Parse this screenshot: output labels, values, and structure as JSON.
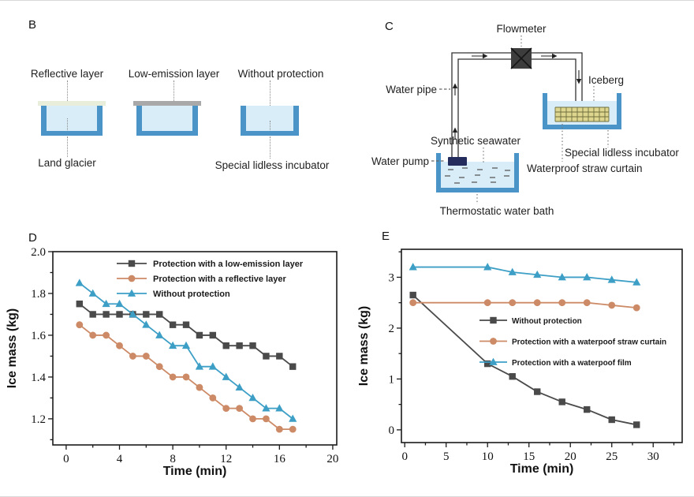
{
  "figure": {
    "panels": {
      "B": {
        "label": "B",
        "setup_labels": [
          "Reflective layer",
          "Low-emission layer",
          "Without protection"
        ],
        "annotations": [
          "Land glacier",
          "Special lidless incubator"
        ]
      },
      "C": {
        "label": "C",
        "annotations": {
          "flowmeter": "Flowmeter",
          "water_pipe": "Water pipe",
          "iceberg": "Iceberg",
          "water_pump": "Water pump",
          "synthetic_seawater": "Synthetic seawater",
          "special_lidless_incubator": "Special lidless incubator",
          "waterproof_straw_curtain": "Waterproof straw curtain",
          "thermostatic_water_bath": "Thermostatic water bath"
        }
      },
      "D": {
        "label": "D"
      },
      "E": {
        "label": "E"
      }
    },
    "colors": {
      "tub_blue": "#4a94c8",
      "water_light_blue": "#d9edf9",
      "reflective_layer": "#e9eedb",
      "low_emission_layer": "#a9a9a9",
      "straw_curtain_fill": "#ded68f",
      "pump_navy": "#232c5c",
      "flowmeter_gray": "#3d3d3d",
      "series_gray": "#4a4a4a",
      "series_orange": "#cd8a66",
      "series_blue": "#3d9fc6"
    }
  },
  "chart_data": [
    {
      "id": "D",
      "type": "line",
      "xlabel": "Time (min)",
      "ylabel": "Ice mass (kg)",
      "xlim": [
        -1,
        20.3
      ],
      "ylim": [
        1.075,
        2.0
      ],
      "xticks": [
        0,
        4,
        8,
        12,
        16,
        20
      ],
      "xtick_labels": [
        "0",
        "4",
        "8",
        "12",
        "16",
        "20"
      ],
      "yticks": [
        1.2,
        1.4,
        1.6,
        1.8,
        2.0
      ],
      "ytick_labels": [
        "1.2",
        "1.4",
        "1.6",
        "1.8",
        "2.0"
      ],
      "x_minor_step": 2,
      "y_minor_step": 0.1,
      "grid": false,
      "legend_position": "inside-top",
      "x": [
        1,
        2,
        3,
        4,
        5,
        6,
        7,
        8,
        9,
        10,
        11,
        12,
        13,
        14,
        15,
        16,
        17
      ],
      "series": [
        {
          "name": "Protection with a low-emission layer",
          "color": "#4a4a4a",
          "marker": "square",
          "values": [
            1.75,
            1.7,
            1.7,
            1.7,
            1.7,
            1.7,
            1.7,
            1.65,
            1.65,
            1.6,
            1.6,
            1.55,
            1.55,
            1.55,
            1.5,
            1.5,
            1.45
          ]
        },
        {
          "name": "Protection with a reflective layer",
          "color": "#cd8a66",
          "marker": "circle",
          "values": [
            1.65,
            1.6,
            1.6,
            1.55,
            1.5,
            1.5,
            1.45,
            1.4,
            1.4,
            1.35,
            1.3,
            1.25,
            1.25,
            1.2,
            1.2,
            1.15,
            1.15
          ]
        },
        {
          "name": "Without protection",
          "color": "#3d9fc6",
          "marker": "triangle",
          "values": [
            1.85,
            1.8,
            1.75,
            1.75,
            1.7,
            1.65,
            1.6,
            1.55,
            1.55,
            1.45,
            1.45,
            1.4,
            1.35,
            1.3,
            1.25,
            1.25,
            1.2
          ]
        }
      ]
    },
    {
      "id": "E",
      "type": "line",
      "xlabel": "Time (min)",
      "ylabel": "Ice mass (kg)",
      "xlim": [
        -0.4,
        33.5
      ],
      "ylim": [
        -0.25,
        3.55
      ],
      "xticks": [
        0,
        5,
        10,
        15,
        20,
        25,
        30
      ],
      "xtick_labels": [
        "0",
        "5",
        "10",
        "15",
        "20",
        "25",
        "30"
      ],
      "yticks": [
        0,
        1,
        2,
        3
      ],
      "ytick_labels": [
        "0",
        "1",
        "2",
        "3"
      ],
      "x_minor_step": 2.5,
      "y_minor_step": 0.5,
      "grid": false,
      "legend_position": "inside-middle",
      "x": [
        1,
        10,
        13,
        16,
        19,
        22,
        25,
        28
      ],
      "series": [
        {
          "name": "Without protection",
          "color": "#4a4a4a",
          "marker": "square",
          "values": [
            2.65,
            1.3,
            1.05,
            0.75,
            0.55,
            0.4,
            0.2,
            0.1
          ]
        },
        {
          "name": "Protection with a waterpoof straw curtain",
          "color": "#cd8a66",
          "marker": "circle",
          "values": [
            2.5,
            2.5,
            2.5,
            2.5,
            2.5,
            2.5,
            2.45,
            2.4
          ]
        },
        {
          "name": "Protection with a waterpoof film",
          "color": "#3d9fc6",
          "marker": "triangle",
          "values": [
            3.2,
            3.2,
            3.1,
            3.05,
            3.0,
            3.0,
            2.95,
            2.9
          ]
        }
      ]
    }
  ]
}
